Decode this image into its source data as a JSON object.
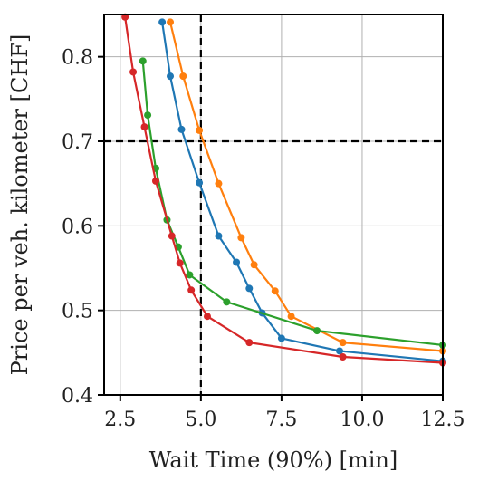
{
  "chart_data": {
    "type": "line",
    "title": "",
    "xlabel": "Wait Time (90%) [min]",
    "ylabel": "Price per veh. kilometer [CHF]",
    "xlim": [
      2.0,
      12.5
    ],
    "ylim": [
      0.4,
      0.85
    ],
    "xticks": [
      2.5,
      5.0,
      7.5,
      10.0,
      12.5
    ],
    "xtick_labels": [
      "2.5",
      "5.0",
      "7.5",
      "10.0",
      "12.5"
    ],
    "yticks": [
      0.4,
      0.5,
      0.6,
      0.7,
      0.8
    ],
    "ytick_labels": [
      "0.4",
      "0.5",
      "0.6",
      "0.7",
      "0.8"
    ],
    "grid": true,
    "legend": "none",
    "reference_lines": {
      "x": 5.0,
      "y": 0.7
    },
    "series": [
      {
        "color": "#1f77b4",
        "x": [
          3.8,
          4.05,
          4.4,
          4.95,
          5.55,
          6.1,
          6.5,
          6.9,
          7.5,
          9.3,
          12.5
        ],
        "y": [
          0.841,
          0.777,
          0.714,
          0.651,
          0.588,
          0.557,
          0.526,
          0.497,
          0.467,
          0.452,
          0.44
        ]
      },
      {
        "color": "#ff7f0e",
        "x": [
          4.05,
          4.45,
          4.95,
          5.55,
          6.25,
          6.65,
          7.3,
          7.8,
          9.4,
          12.5
        ],
        "y": [
          0.841,
          0.777,
          0.713,
          0.65,
          0.586,
          0.554,
          0.523,
          0.493,
          0.462,
          0.452
        ]
      },
      {
        "color": "#2ca02c",
        "x": [
          3.2,
          3.35,
          3.6,
          3.95,
          4.3,
          4.65,
          5.8,
          8.6,
          12.5
        ],
        "y": [
          0.795,
          0.731,
          0.668,
          0.607,
          0.575,
          0.542,
          0.51,
          0.476,
          0.459
        ]
      },
      {
        "color": "#d62728",
        "x": [
          2.65,
          2.9,
          3.25,
          3.6,
          4.1,
          4.35,
          4.7,
          5.2,
          6.5,
          9.4,
          12.5
        ],
        "y": [
          0.847,
          0.782,
          0.717,
          0.653,
          0.588,
          0.556,
          0.524,
          0.493,
          0.462,
          0.445,
          0.438
        ]
      }
    ]
  }
}
